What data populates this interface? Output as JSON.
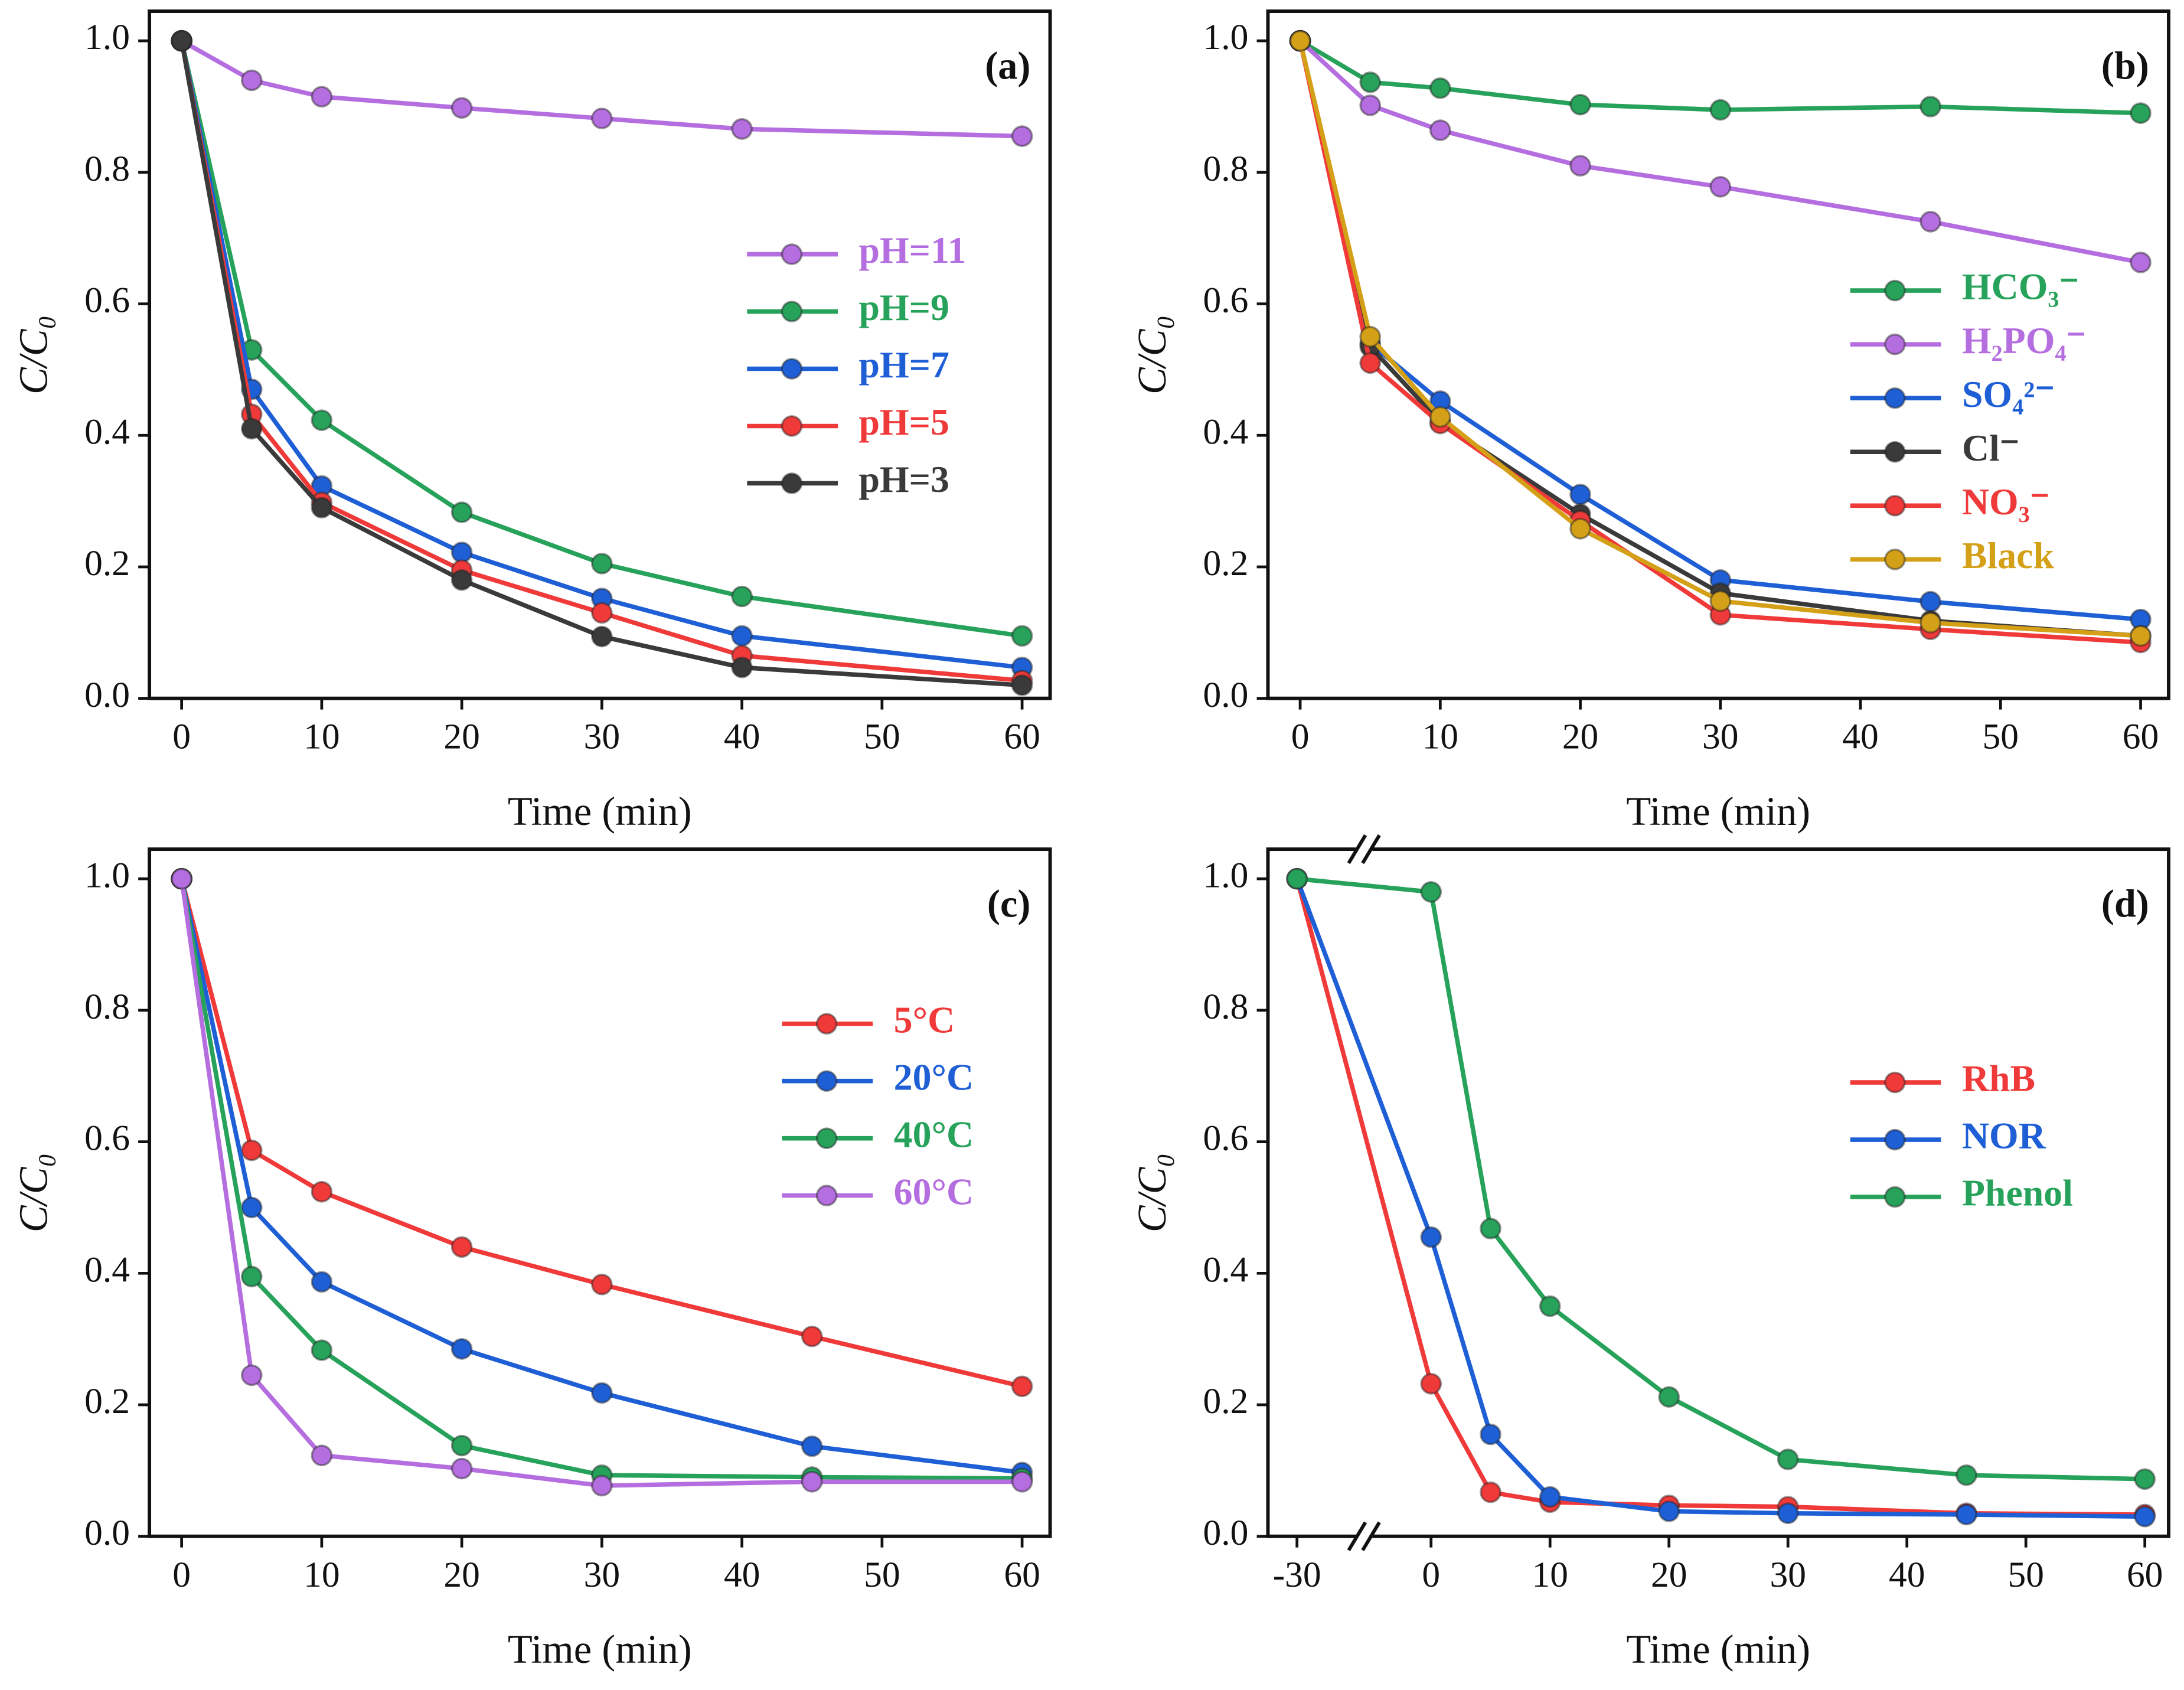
{
  "chart_data": [
    {
      "type": "line",
      "label": "(a)",
      "xlabel": "Time (min)",
      "ylabel": "C/C₀",
      "x": [
        0,
        5,
        10,
        20,
        30,
        40,
        60
      ],
      "xlim": [
        -2.3,
        62
      ],
      "xticks": [
        0,
        10,
        20,
        30,
        40,
        50,
        60
      ],
      "ylim": [
        0,
        1.045
      ],
      "yticks": [
        {
          "value": 0,
          "label": "0.0"
        },
        0.2,
        0.4,
        0.6,
        0.8,
        {
          "value": 1,
          "label": "1.0"
        }
      ],
      "series": [
        {
          "name": "pH=11",
          "color": "#b56ee0",
          "values": [
            1.0,
            0.94,
            0.915,
            0.898,
            0.882,
            0.866,
            0.855
          ]
        },
        {
          "name": "pH=9",
          "color": "#27a25a",
          "values": [
            1.0,
            0.53,
            0.423,
            0.283,
            0.205,
            0.155,
            0.095
          ]
        },
        {
          "name": "pH=7",
          "color": "#1f5fd6",
          "values": [
            1.0,
            0.47,
            0.323,
            0.222,
            0.152,
            0.095,
            0.047
          ]
        },
        {
          "name": "pH=5",
          "color": "#f03a3a",
          "values": [
            1.0,
            0.432,
            0.298,
            0.195,
            0.13,
            0.065,
            0.027
          ]
        },
        {
          "name": "pH=3",
          "color": "#3a3a3a",
          "values": [
            1.0,
            0.41,
            0.29,
            0.18,
            0.094,
            0.047,
            0.02
          ]
        }
      ]
    },
    {
      "type": "line",
      "label": "(b)",
      "xlabel": "Time (min)",
      "ylabel": "C/C₀",
      "x": [
        0,
        5,
        10,
        20,
        30,
        45,
        60
      ],
      "xlim": [
        -2.3,
        62
      ],
      "xticks": [
        0,
        10,
        20,
        30,
        40,
        50,
        60
      ],
      "ylim": [
        0,
        1.045
      ],
      "yticks": [
        {
          "value": 0,
          "label": "0.0"
        },
        0.2,
        0.4,
        0.6,
        0.8,
        {
          "value": 1,
          "label": "1.0"
        }
      ],
      "series": [
        {
          "name": "HCO₃⁻",
          "color": "#27a25a",
          "values": [
            1.0,
            0.937,
            0.928,
            0.903,
            0.895,
            0.9,
            0.89
          ]
        },
        {
          "name": "H₂PO₄⁻",
          "color": "#b56ee0",
          "values": [
            1.0,
            0.902,
            0.864,
            0.81,
            0.778,
            0.725,
            0.663
          ]
        },
        {
          "name": "SO₄²⁻",
          "color": "#1f5fd6",
          "values": [
            1.0,
            0.54,
            0.452,
            0.31,
            0.18,
            0.147,
            0.12
          ]
        },
        {
          "name": "Cl⁻",
          "color": "#3a3a3a",
          "values": [
            1.0,
            0.535,
            0.42,
            0.28,
            0.16,
            0.118,
            0.095
          ]
        },
        {
          "name": "NO₃⁻",
          "color": "#f03a3a",
          "values": [
            1.0,
            0.51,
            0.418,
            0.27,
            0.127,
            0.105,
            0.085
          ]
        },
        {
          "name": "Black",
          "color": "#d4a017",
          "values": [
            1.0,
            0.55,
            0.428,
            0.258,
            0.148,
            0.115,
            0.095
          ]
        }
      ]
    },
    {
      "type": "line",
      "label": "(c)",
      "xlabel": "Time (min)",
      "ylabel": "C/C₀",
      "x": [
        0,
        5,
        10,
        20,
        30,
        45,
        60
      ],
      "xlim": [
        -2.3,
        62
      ],
      "xticks": [
        0,
        10,
        20,
        30,
        40,
        50,
        60
      ],
      "ylim": [
        0,
        1.045
      ],
      "yticks": [
        {
          "value": 0,
          "label": "0.0"
        },
        0.2,
        0.4,
        0.6,
        0.8,
        {
          "value": 1,
          "label": "1.0"
        }
      ],
      "series": [
        {
          "name": "5°C",
          "color": "#f03a3a",
          "values": [
            1.0,
            0.587,
            0.524,
            0.44,
            0.383,
            0.304,
            0.228
          ]
        },
        {
          "name": "20°C",
          "color": "#1f5fd6",
          "values": [
            1.0,
            0.5,
            0.387,
            0.285,
            0.218,
            0.137,
            0.097
          ]
        },
        {
          "name": "40°C",
          "color": "#27a25a",
          "values": [
            1.0,
            0.395,
            0.283,
            0.138,
            0.093,
            0.09,
            0.088
          ]
        },
        {
          "name": "60°C",
          "color": "#b56ee0",
          "values": [
            1.0,
            0.245,
            0.123,
            0.103,
            0.077,
            0.083,
            0.083
          ]
        }
      ]
    },
    {
      "type": "line",
      "label": "(d)",
      "xlabel": "Time (min)",
      "ylabel": "C/C₀",
      "axis_break": true,
      "x": [
        -30,
        0,
        5,
        10,
        20,
        30,
        45,
        60
      ],
      "xlim": [
        -36.5,
        62
      ],
      "xticks": [
        -30,
        0,
        10,
        20,
        30,
        40,
        50,
        60
      ],
      "ylim": [
        0,
        1.045
      ],
      "yticks": [
        {
          "value": 0,
          "label": "0.0"
        },
        0.2,
        0.4,
        0.6,
        0.8,
        {
          "value": 1,
          "label": "1.0"
        }
      ],
      "series": [
        {
          "name": "RhB",
          "color": "#f03a3a",
          "values": [
            1.0,
            0.232,
            0.067,
            0.052,
            0.047,
            0.045,
            0.035,
            0.033
          ]
        },
        {
          "name": "NOR",
          "color": "#1f5fd6",
          "values": [
            1.0,
            0.455,
            0.155,
            0.06,
            0.038,
            0.035,
            0.033,
            0.03
          ]
        },
        {
          "name": "Phenol",
          "color": "#27a25a",
          "values": [
            1.0,
            0.98,
            0.468,
            0.35,
            0.212,
            0.117,
            0.093,
            0.087
          ]
        }
      ]
    }
  ]
}
